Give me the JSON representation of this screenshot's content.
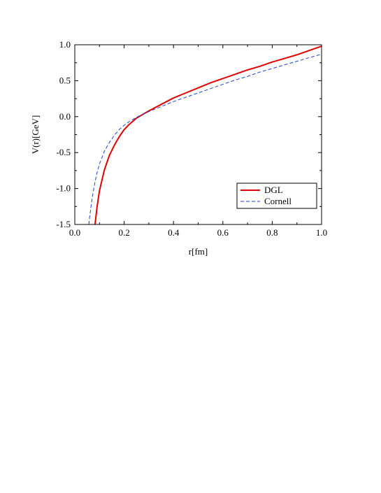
{
  "chart_data": {
    "type": "line",
    "xlabel": "r[fm]",
    "ylabel": "V(r)[GeV]",
    "xlim": [
      0.0,
      1.0
    ],
    "ylim": [
      -1.5,
      1.0
    ],
    "xticks": [
      "0.0",
      "0.2",
      "0.4",
      "0.6",
      "0.8",
      "1.0"
    ],
    "yticks": [
      "1.0",
      "0.5",
      "0.0",
      "-0.5",
      "-1.0",
      "-1.5"
    ],
    "xtick_values": [
      0.0,
      0.2,
      0.4,
      0.6,
      0.8,
      1.0
    ],
    "ytick_values": [
      1.0,
      0.5,
      0.0,
      -0.5,
      -1.0,
      -1.5
    ],
    "legend_position": "bottom-right",
    "grid": false,
    "series": [
      {
        "name": "DGL",
        "color": "#e00000",
        "style": "solid",
        "x": [
          0.082,
          0.09,
          0.1,
          0.12,
          0.14,
          0.16,
          0.18,
          0.2,
          0.22,
          0.25,
          0.28,
          0.3,
          0.35,
          0.4,
          0.45,
          0.5,
          0.55,
          0.6,
          0.65,
          0.7,
          0.75,
          0.8,
          0.85,
          0.9,
          0.95,
          1.0
        ],
        "y": [
          -1.5,
          -1.26,
          -1.03,
          -0.74,
          -0.54,
          -0.4,
          -0.28,
          -0.18,
          -0.11,
          -0.02,
          0.04,
          0.08,
          0.17,
          0.26,
          0.33,
          0.4,
          0.47,
          0.53,
          0.59,
          0.65,
          0.7,
          0.76,
          0.81,
          0.86,
          0.92,
          0.98
        ]
      },
      {
        "name": "Cornell",
        "color": "#2040d0",
        "style": "dashed",
        "x": [
          0.057,
          0.06,
          0.07,
          0.08,
          0.09,
          0.1,
          0.12,
          0.14,
          0.16,
          0.18,
          0.2,
          0.22,
          0.25,
          0.3,
          0.35,
          0.4,
          0.45,
          0.5,
          0.55,
          0.6,
          0.65,
          0.7,
          0.75,
          0.8,
          0.85,
          0.9,
          0.95,
          1.0
        ],
        "y": [
          -1.5,
          -1.4,
          -1.14,
          -0.94,
          -0.78,
          -0.66,
          -0.48,
          -0.36,
          -0.26,
          -0.18,
          -0.12,
          -0.07,
          -0.01,
          0.07,
          0.14,
          0.21,
          0.27,
          0.33,
          0.39,
          0.45,
          0.51,
          0.56,
          0.62,
          0.67,
          0.72,
          0.77,
          0.82,
          0.87
        ]
      }
    ]
  }
}
